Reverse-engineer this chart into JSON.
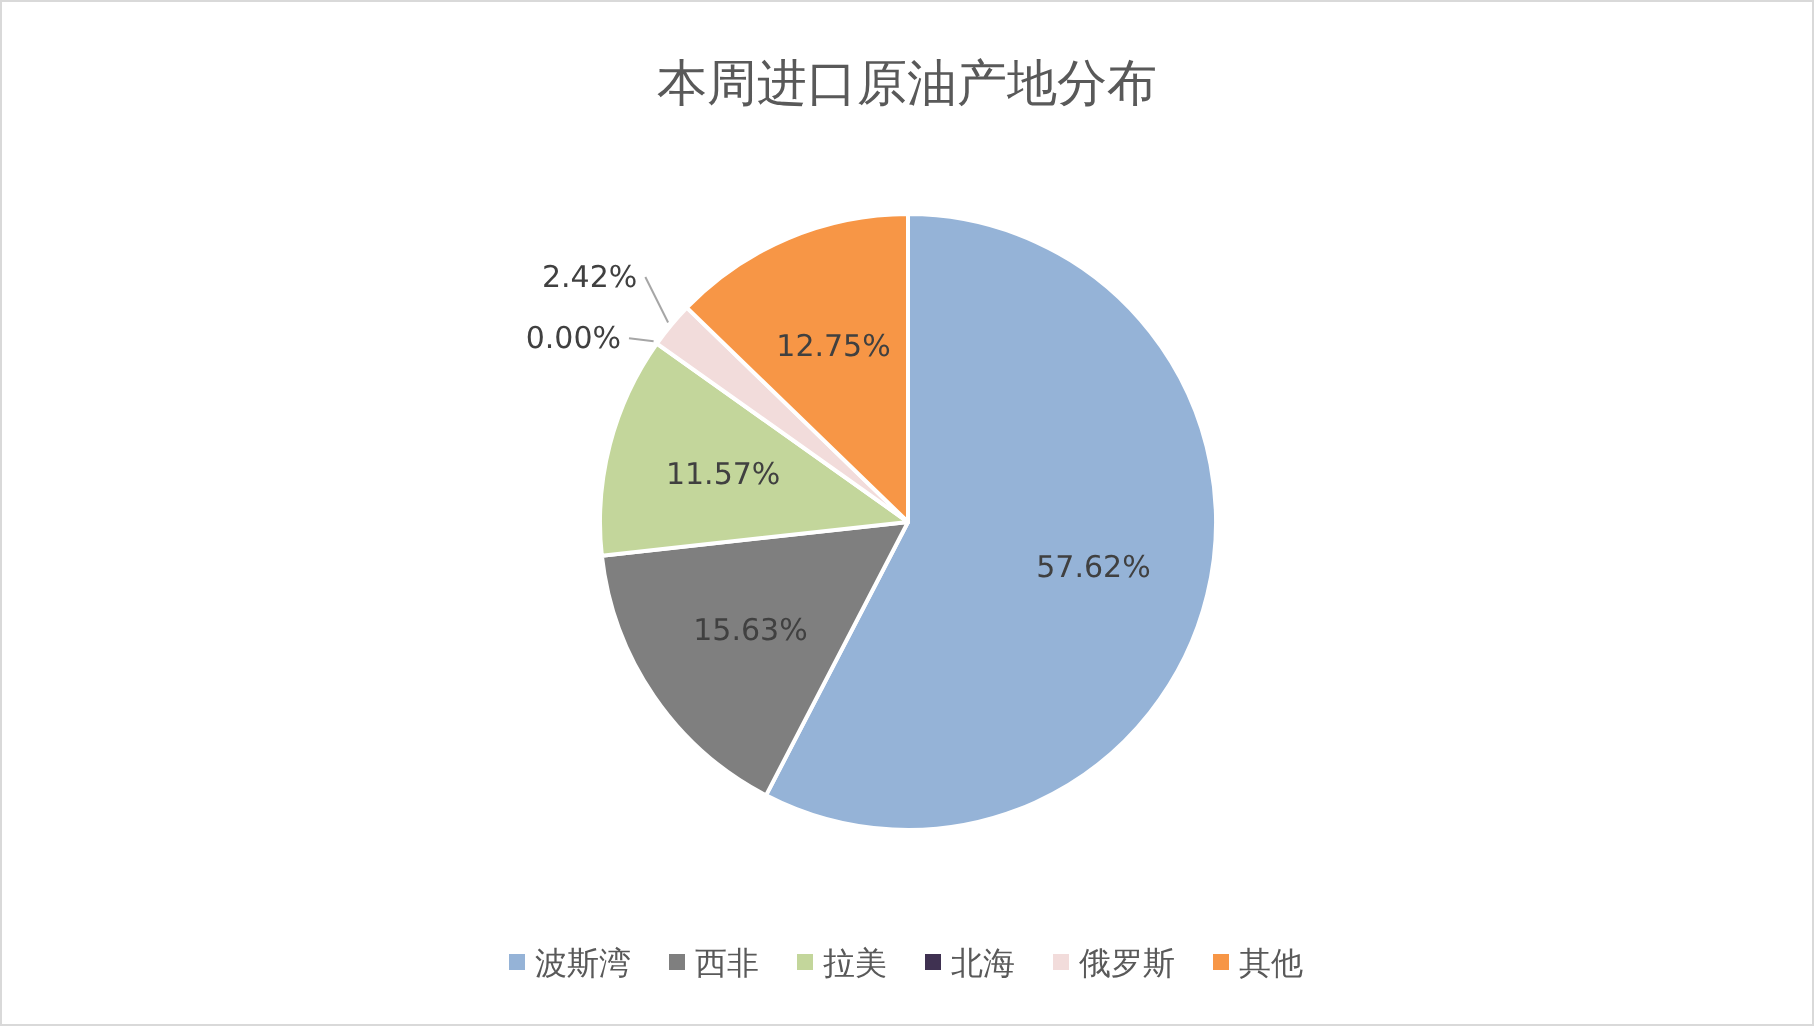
{
  "chart_data": {
    "type": "pie",
    "title": "本周进口原油产地分布",
    "categories": [
      "波斯湾",
      "西非",
      "拉美",
      "北海",
      "俄罗斯",
      "其他"
    ],
    "values": [
      57.62,
      15.63,
      11.57,
      0.0,
      2.42,
      12.75
    ],
    "value_labels": [
      "57.62%",
      "15.63%",
      "11.57%",
      "0.00%",
      "2.42%",
      "12.75%"
    ],
    "colors": [
      "#95b3d7",
      "#7f7f7f",
      "#c3d69b",
      "#3f3151",
      "#f2dcdb",
      "#f79646"
    ],
    "legend": "bottom"
  }
}
